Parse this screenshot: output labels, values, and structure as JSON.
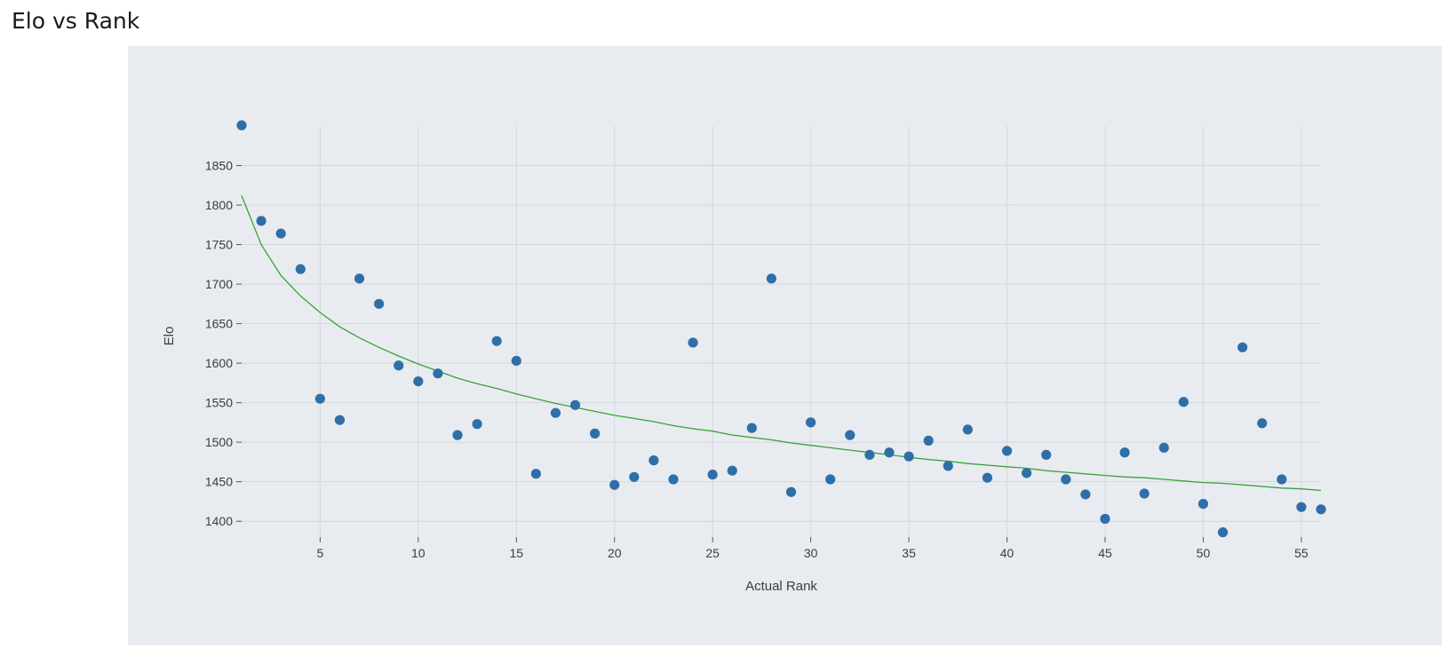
{
  "page": {
    "title": "Elo vs Rank"
  },
  "colors": {
    "background": "#e8ecf0",
    "points": "#2f6fa8",
    "trend": "#3aa13a",
    "grid": "#d3d7db"
  },
  "chart_data": {
    "type": "scatter",
    "title": "",
    "xlabel": "Actual Rank",
    "ylabel": "Elo",
    "xlim": [
      1,
      56
    ],
    "ylim": [
      1380,
      1900
    ],
    "grid": true,
    "xticks": [
      5,
      10,
      15,
      20,
      25,
      30,
      35,
      40,
      45,
      50,
      55
    ],
    "yticks": [
      1400,
      1450,
      1500,
      1550,
      1600,
      1650,
      1700,
      1750,
      1800,
      1850
    ],
    "series": [
      {
        "kind": "scatter",
        "x": [
          1,
          2,
          3,
          4,
          5,
          6,
          7,
          8,
          9,
          10,
          11,
          12,
          13,
          14,
          15,
          16,
          17,
          18,
          19,
          20,
          21,
          22,
          23,
          24,
          25,
          26,
          27,
          28,
          29,
          30,
          31,
          32,
          33,
          34,
          35,
          36,
          37,
          38,
          39,
          40,
          41,
          42,
          43,
          44,
          45,
          46,
          47,
          48,
          49,
          50,
          51,
          52,
          53,
          54,
          55,
          56
        ],
        "y": [
          1901,
          1780,
          1764,
          1719,
          1555,
          1528,
          1707,
          1675,
          1597,
          1577,
          1587,
          1509,
          1523,
          1628,
          1603,
          1460,
          1537,
          1547,
          1511,
          1446,
          1456,
          1477,
          1453,
          1626,
          1459,
          1464,
          1518,
          1707,
          1437,
          1525,
          1453,
          1509,
          1484,
          1487,
          1482,
          1502,
          1470,
          1516,
          1455,
          1489,
          1461,
          1484,
          1453,
          1434,
          1403,
          1487,
          1435,
          1493,
          1551,
          1422,
          1386,
          1620,
          1524,
          1453,
          1418,
          1415
        ]
      },
      {
        "kind": "line",
        "x": [
          1,
          2,
          3,
          4,
          5,
          6,
          7,
          8,
          9,
          10,
          11,
          12,
          13,
          14,
          15,
          16,
          17,
          18,
          19,
          20,
          21,
          22,
          23,
          24,
          25,
          26,
          27,
          28,
          29,
          30,
          31,
          32,
          33,
          34,
          35,
          36,
          37,
          38,
          39,
          40,
          41,
          42,
          43,
          44,
          45,
          46,
          47,
          48,
          49,
          50,
          51,
          52,
          53,
          54,
          55,
          56
        ],
        "y": [
          1812,
          1750,
          1711,
          1685,
          1664,
          1646,
          1632,
          1620,
          1609,
          1599,
          1590,
          1581,
          1574,
          1568,
          1561,
          1555,
          1549,
          1544,
          1539,
          1534,
          1530,
          1526,
          1521,
          1517,
          1514,
          1509,
          1506,
          1503,
          1499,
          1496,
          1493,
          1490,
          1487,
          1484,
          1481,
          1478,
          1476,
          1473,
          1471,
          1469,
          1467,
          1464,
          1462,
          1460,
          1458,
          1456,
          1455,
          1453,
          1451,
          1449,
          1448,
          1446,
          1444,
          1442,
          1441,
          1439
        ]
      }
    ]
  }
}
